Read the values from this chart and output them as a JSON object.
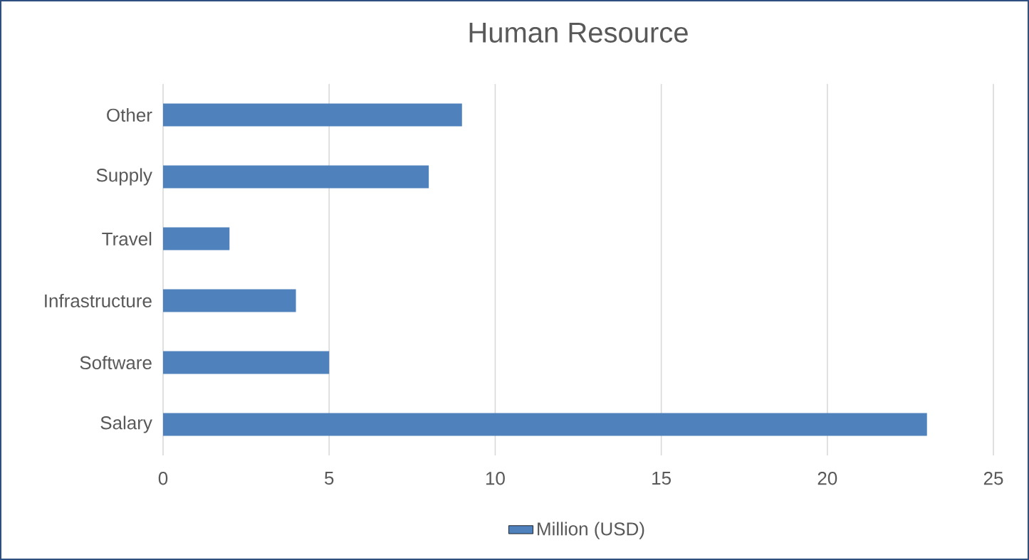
{
  "chart_data": {
    "type": "bar",
    "orientation": "horizontal",
    "title": "Human Resource",
    "categories": [
      "Other",
      "Supply",
      "Travel",
      "Infrastructure",
      "Software",
      "Salary"
    ],
    "series": [
      {
        "name": "Million (USD)",
        "color": "#4f81bd",
        "values": [
          9,
          8,
          2,
          4,
          5,
          23
        ]
      }
    ],
    "xlim": [
      0,
      25
    ],
    "xticks": [
      0,
      5,
      10,
      15,
      20,
      25
    ],
    "grid": "x",
    "legend": "bottom"
  }
}
